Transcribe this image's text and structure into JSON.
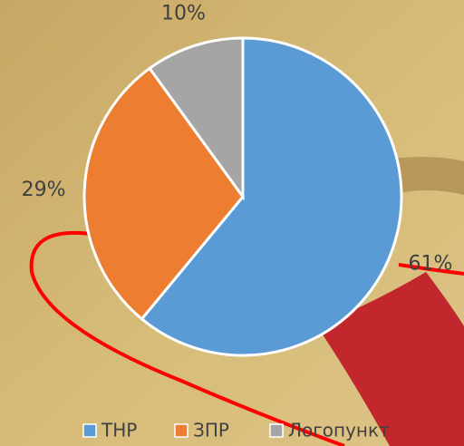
{
  "chart_data": {
    "type": "pie",
    "categories": [
      "ТНР",
      "ЗПР",
      "Логопункт"
    ],
    "values": [
      61,
      29,
      10
    ],
    "value_labels": [
      "61%",
      "29%",
      "10%"
    ],
    "colors": [
      "#5b9bd5",
      "#ed7d31",
      "#a5a5a5"
    ],
    "legend": "bottom"
  }
}
